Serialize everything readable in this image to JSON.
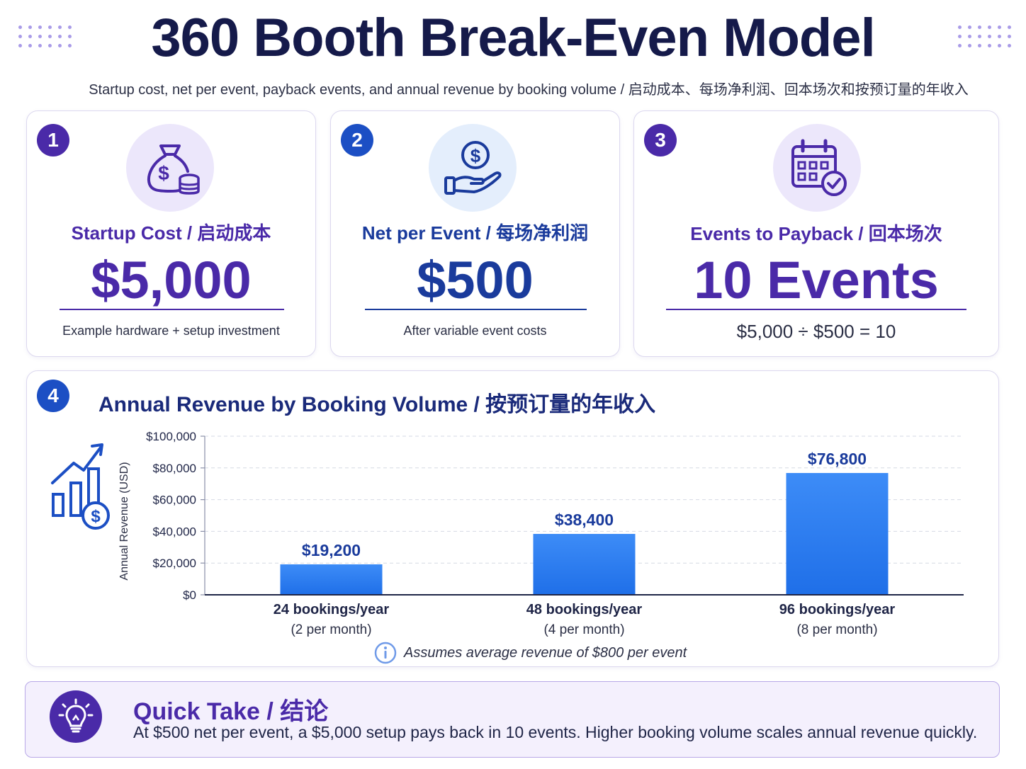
{
  "header": {
    "title": "360 Booth Break-Even Model",
    "subtitle": "Startup cost, net per event, payback events, and annual revenue by booking volume / 启动成本、每场净利润、回本场次和按预订量的年收入"
  },
  "cards": [
    {
      "number": "1",
      "label": "Startup Cost / 启动成本",
      "value": "$5,000",
      "note": "Example hardware + setup investment",
      "icon": "money-bag-icon"
    },
    {
      "number": "2",
      "label": "Net per Event / 每场净利润",
      "value": "$500",
      "note": "After variable event costs",
      "icon": "hand-dollar-icon"
    },
    {
      "number": "3",
      "label": "Events to Payback / 回本场次",
      "value": "10 Events",
      "note": "$5,000 ÷ $500 = 10",
      "icon": "calendar-check-icon"
    }
  ],
  "chart_section": {
    "number": "4",
    "heading": "Annual Revenue by Booking Volume / 按预订量的年收入",
    "assumption": "Assumes average revenue of $800 per event",
    "icon": "growth-chart-icon"
  },
  "chart_data": {
    "type": "bar",
    "categories": [
      "24 bookings/year",
      "48 bookings/year",
      "96 bookings/year"
    ],
    "subcategories": [
      "(2 per month)",
      "(4 per month)",
      "(8 per month)"
    ],
    "values": [
      19200,
      38400,
      76800
    ],
    "value_labels": [
      "$19,200",
      "$38,400",
      "$76,800"
    ],
    "ylabel": "Annual Revenue (USD)",
    "ylim": [
      0,
      100000
    ],
    "yticks": [
      0,
      20000,
      40000,
      60000,
      80000,
      100000
    ],
    "ytick_labels": [
      "$0",
      "$20,000",
      "$40,000",
      "$60,000",
      "$80,000",
      "$100,000"
    ],
    "grid": true,
    "bar_color": "#1f6fe8"
  },
  "quick_take": {
    "title": "Quick Take / 结论",
    "text": "At $500 net per event, a $5,000 setup pays back in 10 events. Higher booking volume scales annual revenue quickly.",
    "icon": "lightbulb-icon"
  },
  "colors": {
    "purple": "#4a2aa8",
    "blue": "#1c4fc4",
    "navy": "#151a4a"
  }
}
